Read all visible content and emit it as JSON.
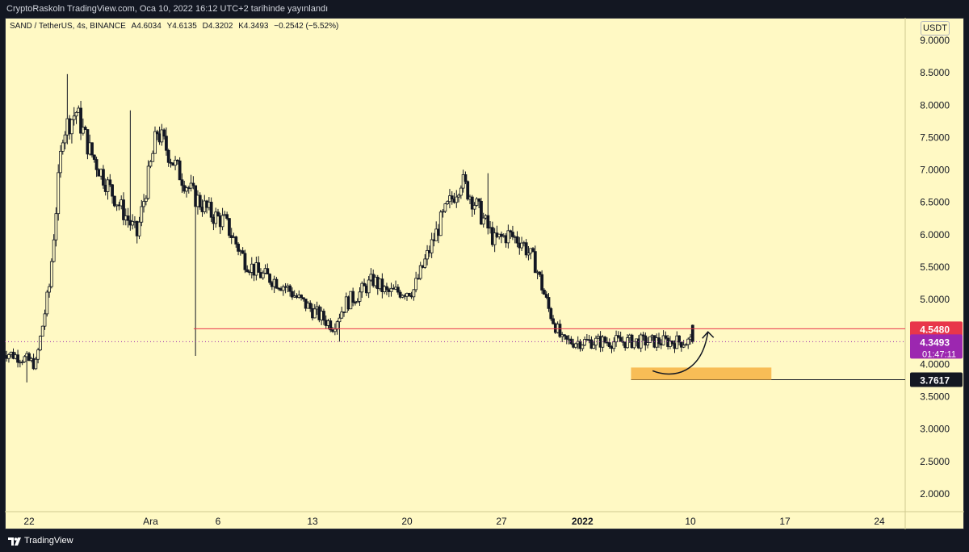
{
  "header": {
    "publisher_text": "CryptoRaskoln TradingView.com, Oca 10, 2022 16:12 UTC+2 tarihinde yayınlandı"
  },
  "legend": {
    "symbol_text": "SAND / TetherUS, 4s, BINANCE",
    "open": "A4.6034",
    "high": "Y4.6135",
    "low": "D4.3202",
    "close": "K4.3493",
    "change": "−0.2542 (−5.52%)"
  },
  "currency_label": "USDT",
  "footer": {
    "brand": "TradingView"
  },
  "colors": {
    "background": "#fff9c4",
    "frame": "#131722",
    "candle": "#131722",
    "resistance_line": "#e8364a",
    "support_line": "#131722",
    "zone": "#f7b343",
    "current_price_badge": "#9c27b0"
  },
  "chart_data": {
    "type": "candlestick",
    "symbol": "SAND / TetherUS",
    "interval": "4s",
    "exchange": "BINANCE",
    "ylim": [
      1.75,
      9.3
    ],
    "yticks": [
      "9.0000",
      "8.5000",
      "8.0000",
      "7.5000",
      "7.0000",
      "6.5000",
      "6.0000",
      "5.5000",
      "5.0000",
      "4.5000",
      "4.0000",
      "3.5000",
      "3.0000",
      "2.5000",
      "2.0000"
    ],
    "xticks": [
      "22",
      "Ara",
      "6",
      "13",
      "20",
      "27",
      "2022",
      "10",
      "17",
      "24"
    ],
    "price_path": {
      "x_days_since_nov_20": [
        0,
        1.5,
        2.5,
        3.5,
        4.5,
        5.5,
        6.5,
        8,
        10,
        11.5,
        13,
        14.2,
        15.6,
        16.5,
        18,
        19,
        20.2,
        21,
        22,
        23.5,
        24.5,
        25.5,
        26.5,
        27.5,
        28.5,
        30.5,
        32.5,
        34,
        35,
        36.5,
        37.5,
        38.5,
        39.5,
        40.5,
        41.5
      ],
      "close": [
        4.2,
        4.1,
        4.0,
        5.2,
        7.6,
        7.9,
        7.3,
        6.7,
        6.0,
        7.6,
        7.0,
        6.6,
        6.3,
        6.2,
        5.6,
        5.4,
        5.3,
        5.2,
        5.0,
        4.75,
        4.6,
        4.95,
        5.1,
        5.3,
        5.1,
        5.15,
        6.2,
        6.85,
        6.5,
        5.9,
        6.0,
        5.9,
        5.55,
        4.85,
        4.35
      ],
      "wick_extremes": [
        {
          "x": 4.8,
          "high": 8.48
        },
        {
          "x": 9.5,
          "high": 7.92
        },
        {
          "x": 14.3,
          "low": 4.13
        },
        {
          "x": 14.3,
          "high": 6.6
        },
        {
          "x": 25.0,
          "low": 4.35
        },
        {
          "x": 1.8,
          "low": 3.72
        },
        {
          "x": 36.0,
          "high": 6.95
        }
      ]
    },
    "last_candle": {
      "open": 4.6034,
      "high": 4.6135,
      "low": 4.3202,
      "close": 4.3493
    },
    "horizontal_levels": [
      {
        "price": 4.548,
        "label": "4.5480",
        "color": "#e8364a"
      },
      {
        "price": 4.3493,
        "label": "4.3493",
        "sublabel": "01:47:11",
        "color": "#9c27b0",
        "style": "dotted"
      },
      {
        "price": 3.7617,
        "label": "3.7617",
        "color": "#131722"
      }
    ],
    "zone": {
      "price_low": 3.76,
      "price_high": 3.95,
      "x_start_day": 46.6,
      "x_end_day": 57.0,
      "color": "#f7b343"
    },
    "arrow": {
      "from_price": 3.9,
      "to_price": 4.5,
      "start_day": 48.2,
      "end_day": 52.3
    }
  }
}
